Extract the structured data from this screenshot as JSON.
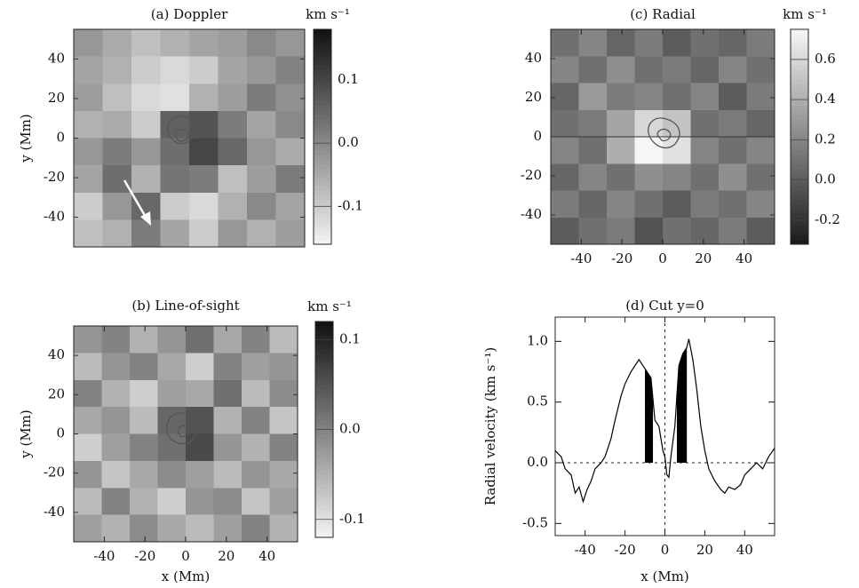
{
  "chart_data": [
    {
      "type": "heatmap",
      "title": "(a) Doppler",
      "colorbar_label": "km s⁻¹",
      "ylabel": "y (Mm)",
      "xlim": [
        -55,
        55
      ],
      "ylim": [
        -55,
        55
      ],
      "yticks": [
        -40,
        -20,
        0,
        20,
        40
      ],
      "zlim": [
        -0.16,
        0.18
      ],
      "zticks": [
        0.1,
        {
          "value": 0,
          "label": "0.0"
        },
        -0.1
      ],
      "colormap": [
        "#f4f4f4",
        "#111111"
      ],
      "values": [
        [
          -0.02,
          -0.05,
          -0.08,
          -0.06,
          -0.04,
          -0.03,
          0.0,
          -0.02
        ],
        [
          -0.04,
          -0.06,
          -0.1,
          -0.12,
          -0.1,
          -0.04,
          -0.02,
          0.01
        ],
        [
          -0.03,
          -0.08,
          -0.12,
          -0.13,
          -0.06,
          -0.03,
          0.02,
          -0.01
        ],
        [
          -0.06,
          -0.05,
          -0.1,
          0.06,
          0.08,
          0.02,
          -0.04,
          0.0
        ],
        [
          -0.02,
          0.02,
          -0.02,
          0.04,
          0.1,
          0.05,
          -0.02,
          -0.05
        ],
        [
          -0.04,
          0.04,
          -0.06,
          0.03,
          0.02,
          -0.08,
          -0.03,
          0.02
        ],
        [
          -0.1,
          -0.02,
          0.05,
          -0.1,
          -0.12,
          -0.06,
          0.0,
          -0.04
        ],
        [
          -0.08,
          -0.06,
          0.02,
          -0.04,
          -0.1,
          -0.02,
          -0.06,
          -0.03
        ]
      ]
    },
    {
      "type": "heatmap",
      "title": "(b) Line-of-sight",
      "colorbar_label": "km s⁻¹",
      "xlabel": "x (Mm)",
      "ylabel": "y (Mm)",
      "xlim": [
        -55,
        55
      ],
      "ylim": [
        -55,
        55
      ],
      "xticks": [
        -40,
        -20,
        0,
        20,
        40
      ],
      "yticks": [
        -40,
        -20,
        0,
        20,
        40
      ],
      "zlim": [
        -0.12,
        0.12
      ],
      "zticks": [
        0.1,
        {
          "value": 0,
          "label": "0.0"
        },
        -0.1
      ],
      "colormap": [
        "#f4f4f4",
        "#111111"
      ],
      "values": [
        [
          -0.02,
          0.0,
          -0.05,
          -0.02,
          0.02,
          -0.04,
          0.0,
          -0.06
        ],
        [
          -0.06,
          -0.02,
          0.0,
          -0.04,
          -0.08,
          0.0,
          -0.03,
          -0.02
        ],
        [
          0.0,
          -0.05,
          -0.08,
          -0.03,
          -0.04,
          0.02,
          -0.06,
          -0.01
        ],
        [
          -0.04,
          -0.02,
          -0.06,
          0.03,
          0.05,
          -0.05,
          0.0,
          -0.07
        ],
        [
          -0.08,
          -0.03,
          0.0,
          0.02,
          0.06,
          -0.02,
          -0.05,
          0.0
        ],
        [
          -0.02,
          -0.07,
          -0.04,
          -0.01,
          -0.03,
          -0.06,
          -0.02,
          -0.04
        ],
        [
          -0.06,
          0.0,
          -0.05,
          -0.08,
          -0.02,
          -0.01,
          -0.07,
          -0.03
        ],
        [
          -0.03,
          -0.05,
          -0.01,
          -0.04,
          -0.06,
          -0.03,
          0.0,
          -0.05
        ]
      ]
    },
    {
      "type": "heatmap",
      "title": "(c) Radial",
      "colorbar_label": "km s⁻¹",
      "xlim": [
        -55,
        55
      ],
      "ylim": [
        -55,
        55
      ],
      "xticks": [
        -40,
        -20,
        0,
        20,
        40
      ],
      "yticks": [
        -40,
        -20,
        0,
        20,
        40
      ],
      "hline": 0,
      "zlim": [
        -0.32,
        0.75
      ],
      "zticks": [
        0.6,
        0.4,
        0.2,
        {
          "value": 0,
          "label": "0.0"
        },
        -0.2
      ],
      "colormap": [
        "#1a1a1a",
        "#f6f6f6"
      ],
      "values": [
        [
          0.1,
          0.2,
          0.05,
          0.15,
          0.0,
          0.1,
          0.05,
          0.15
        ],
        [
          0.2,
          0.1,
          0.25,
          0.1,
          0.15,
          0.05,
          0.2,
          0.1
        ],
        [
          0.05,
          0.3,
          0.15,
          0.2,
          0.1,
          0.2,
          0.0,
          0.15
        ],
        [
          0.1,
          0.15,
          0.35,
          0.6,
          0.5,
          0.1,
          0.15,
          0.05
        ],
        [
          0.2,
          0.1,
          0.4,
          0.75,
          0.65,
          0.2,
          0.1,
          0.2
        ],
        [
          0.05,
          0.2,
          0.1,
          0.25,
          0.2,
          0.1,
          0.25,
          0.1
        ],
        [
          0.15,
          0.05,
          0.2,
          0.1,
          0.0,
          0.15,
          0.1,
          0.2
        ],
        [
          0.0,
          0.1,
          0.15,
          -0.05,
          0.1,
          0.05,
          0.15,
          0.0
        ]
      ]
    },
    {
      "type": "line",
      "title": "(d) Cut y=0",
      "xlabel": "x (Mm)",
      "ylabel": "Radial velocity  (km s⁻¹)",
      "xlim": [
        -55,
        55
      ],
      "ylim": [
        -0.6,
        1.2
      ],
      "xticks": [
        -40,
        -20,
        0,
        20,
        40
      ],
      "yticks": [
        -0.5,
        {
          "value": 0,
          "label": "0.0"
        },
        0.5,
        {
          "value": 1,
          "label": "1.0"
        }
      ],
      "hline": 0,
      "vline": 0,
      "color": "#000000",
      "shaded_ranges": [
        [
          -10,
          -6
        ],
        [
          6,
          11
        ]
      ],
      "x": [
        -55,
        -52,
        -50,
        -47,
        -45,
        -43,
        -41,
        -39,
        -37,
        -35,
        -32,
        -30,
        -27,
        -25,
        -22,
        -20,
        -17,
        -15,
        -13,
        -11,
        -9,
        -7,
        -5,
        -3,
        -1,
        0,
        1,
        2,
        3,
        5,
        7,
        9,
        11,
        12,
        14,
        16,
        18,
        20,
        22,
        25,
        28,
        30,
        32,
        35,
        38,
        40,
        43,
        46,
        49,
        52,
        55
      ],
      "values": [
        0.1,
        0.05,
        -0.05,
        -0.1,
        -0.25,
        -0.2,
        -0.32,
        -0.22,
        -0.15,
        -0.05,
        0.0,
        0.05,
        0.2,
        0.35,
        0.55,
        0.65,
        0.75,
        0.8,
        0.85,
        0.8,
        0.75,
        0.7,
        0.35,
        0.3,
        0.1,
        0.05,
        -0.1,
        -0.12,
        0.05,
        0.3,
        0.8,
        0.9,
        0.95,
        1.02,
        0.85,
        0.6,
        0.3,
        0.1,
        -0.05,
        -0.15,
        -0.22,
        -0.25,
        -0.2,
        -0.22,
        -0.18,
        -0.1,
        -0.05,
        0.0,
        -0.05,
        0.05,
        0.12
      ]
    }
  ]
}
